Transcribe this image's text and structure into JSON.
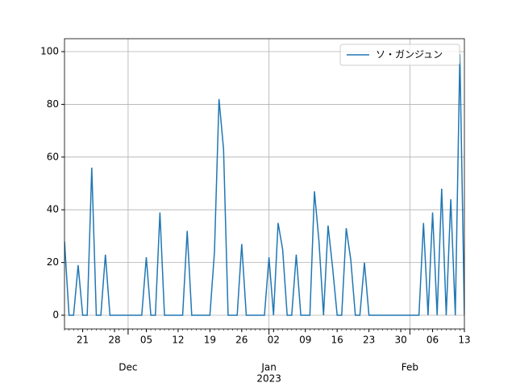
{
  "chart_data": {
    "type": "line",
    "x": [
      "2022-11-17",
      "2022-11-18",
      "2022-11-19",
      "2022-11-20",
      "2022-11-21",
      "2022-11-22",
      "2022-11-23",
      "2022-11-24",
      "2022-11-25",
      "2022-11-26",
      "2022-11-27",
      "2022-11-28",
      "2022-11-29",
      "2022-11-30",
      "2022-12-01",
      "2022-12-02",
      "2022-12-03",
      "2022-12-04",
      "2022-12-05",
      "2022-12-06",
      "2022-12-07",
      "2022-12-08",
      "2022-12-09",
      "2022-12-10",
      "2022-12-11",
      "2022-12-12",
      "2022-12-13",
      "2022-12-14",
      "2022-12-15",
      "2022-12-16",
      "2022-12-17",
      "2022-12-18",
      "2022-12-19",
      "2022-12-20",
      "2022-12-21",
      "2022-12-22",
      "2022-12-23",
      "2022-12-24",
      "2022-12-25",
      "2022-12-26",
      "2022-12-27",
      "2022-12-28",
      "2022-12-29",
      "2022-12-30",
      "2022-12-31",
      "2023-01-01",
      "2023-01-02",
      "2023-01-03",
      "2023-01-04",
      "2023-01-05",
      "2023-01-06",
      "2023-01-07",
      "2023-01-08",
      "2023-01-09",
      "2023-01-10",
      "2023-01-11",
      "2023-01-12",
      "2023-01-13",
      "2023-01-14",
      "2023-01-15",
      "2023-01-16",
      "2023-01-17",
      "2023-01-18",
      "2023-01-19",
      "2023-01-20",
      "2023-01-21",
      "2023-01-22",
      "2023-01-23",
      "2023-01-24",
      "2023-01-25",
      "2023-01-26",
      "2023-01-27",
      "2023-01-28",
      "2023-01-29",
      "2023-01-30",
      "2023-01-31",
      "2023-02-01",
      "2023-02-02",
      "2023-02-03",
      "2023-02-04",
      "2023-02-05",
      "2023-02-06",
      "2023-02-07",
      "2023-02-08",
      "2023-02-09",
      "2023-02-10",
      "2023-02-11",
      "2023-02-12",
      "2023-02-13"
    ],
    "series": [
      {
        "name": "ソ・ガンジュン",
        "color": "#1f77b4",
        "values": [
          28,
          0,
          0,
          19,
          0,
          0,
          56,
          0,
          0,
          23,
          0,
          0,
          0,
          0,
          0,
          0,
          0,
          0,
          22,
          0,
          0,
          39,
          0,
          0,
          0,
          0,
          0,
          32,
          0,
          0,
          0,
          0,
          0,
          24,
          82,
          63,
          0,
          0,
          0,
          27,
          0,
          0,
          0,
          0,
          0,
          22,
          0,
          35,
          25,
          0,
          0,
          23,
          0,
          0,
          0,
          47,
          28,
          0,
          34,
          18,
          0,
          0,
          33,
          21,
          0,
          0,
          20,
          0,
          0,
          0,
          0,
          0,
          0,
          0,
          0,
          0,
          0,
          0,
          0,
          35,
          0,
          39,
          0,
          48,
          0,
          44,
          0,
          99,
          0
        ]
      }
    ],
    "xlim": [
      "2022-11-17",
      "2023-02-13"
    ],
    "xticks": [
      {
        "value": "2022-11-21",
        "label": "21"
      },
      {
        "value": "2022-11-28",
        "label": "28"
      },
      {
        "value": "2022-12-05",
        "label": "05"
      },
      {
        "value": "2022-12-12",
        "label": "12"
      },
      {
        "value": "2022-12-19",
        "label": "19"
      },
      {
        "value": "2022-12-26",
        "label": "26"
      },
      {
        "value": "2023-01-02",
        "label": "02"
      },
      {
        "value": "2023-01-09",
        "label": "09"
      },
      {
        "value": "2023-01-16",
        "label": "16"
      },
      {
        "value": "2023-01-23",
        "label": "23"
      },
      {
        "value": "2023-01-30",
        "label": "30"
      },
      {
        "value": "2023-02-06",
        "label": "06"
      },
      {
        "value": "2023-02-13",
        "label": "13"
      }
    ],
    "month_ticks": [
      {
        "value": "2022-12-01",
        "label": "Dec"
      },
      {
        "value": "2023-01-01",
        "label": "Jan",
        "sublabel": "2023"
      },
      {
        "value": "2023-02-01",
        "label": "Feb"
      }
    ],
    "ylim": [
      -5.2,
      104.9
    ],
    "yticks": [
      0,
      20,
      40,
      60,
      80,
      100
    ],
    "grid": true,
    "legend": "upper right"
  }
}
